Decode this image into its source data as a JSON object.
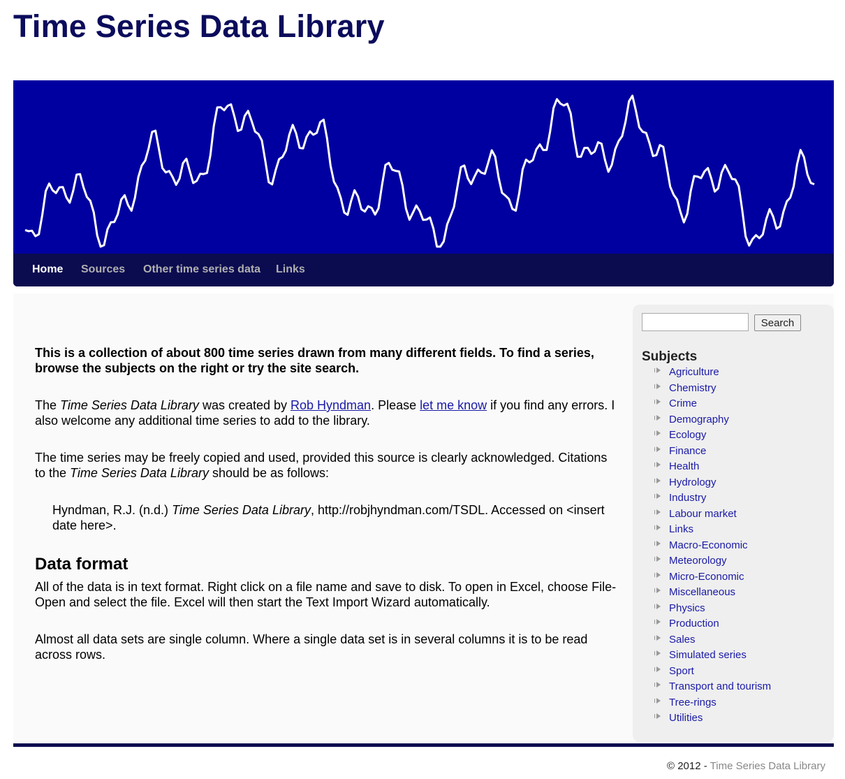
{
  "site": {
    "title": "Time Series Data Library"
  },
  "nav": {
    "items": [
      {
        "label": "Home",
        "active": true
      },
      {
        "label": "Sources",
        "active": false
      },
      {
        "label": "Other time series data",
        "active": false
      },
      {
        "label": "Links",
        "active": false
      }
    ]
  },
  "main": {
    "intro": "This is a collection of about 800 time series drawn from many different fields. To find a series, browse the subjects on the right or try the site search.",
    "p1": {
      "part1": "The ",
      "italic1": "Time Series Data Library",
      "part2": " was created by ",
      "link1": "Rob Hyndman",
      "part3": ". Please ",
      "link2": "let me know",
      "part4": " if you find any errors. I also welcome any additional time series to add to the library."
    },
    "p2": {
      "part1": "The time series may be freely copied and used, provided this source is clearly acknowledged. Citations to the ",
      "italic1": "Time Series Data Library",
      "part2": " should be as follows:"
    },
    "citation": {
      "part1": "Hyndman, R.J. (n.d.) ",
      "italic1": "Time Series Data Library",
      "part2": ", http://robjhyndman.com/TSDL. Accessed on <insert date here>."
    },
    "data_format_heading": "Data format",
    "p3": "All of the data is in text format. Right click on a file name and save to disk. To open in Excel, choose File-Open and select the file. Excel will then start the Text Import Wizard automatically.",
    "p4": "Almost all data sets are single column. Where a single data set is in several columns it is to be read across rows."
  },
  "sidebar": {
    "search": {
      "value": "",
      "placeholder": "",
      "button_label": "Search"
    },
    "subjects_heading": "Subjects",
    "subjects": [
      "Agriculture",
      "Chemistry",
      "Crime",
      "Demography",
      "Ecology",
      "Finance",
      "Health",
      "Hydrology",
      "Industry",
      "Labour market",
      "Links",
      "Macro-Economic",
      "Meteorology",
      "Micro-Economic",
      "Miscellaneous",
      "Physics",
      "Production",
      "Sales",
      "Simulated series",
      "Sport",
      "Transport and tourism",
      "Tree-rings",
      "Utilities"
    ]
  },
  "footer": {
    "copyright": "© 2012 - ",
    "link": "Time Series Data Library"
  },
  "colors": {
    "banner": "#0000a0",
    "navbar": "#0b0b50",
    "title": "#0c0c5c",
    "link": "#1a1aa6"
  },
  "icons": {
    "subject_bullet": "arrow-bullet-icon"
  }
}
